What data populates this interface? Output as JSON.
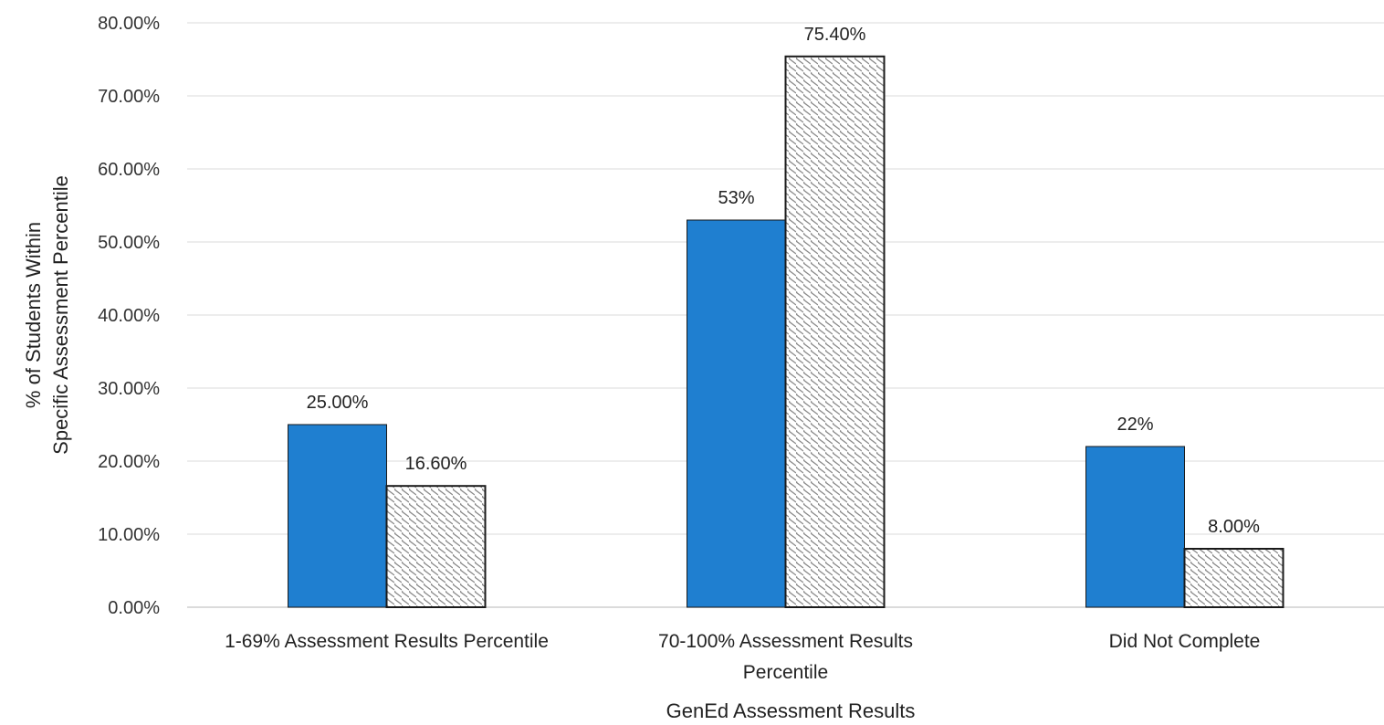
{
  "chart_data": {
    "type": "bar",
    "title": "",
    "xlabel": "GenEd Assessment Results",
    "ylabel_lines": [
      "% of Students Within",
      "Specific Assessment Percentile"
    ],
    "categories": [
      [
        "1-69% Assessment Results Percentile"
      ],
      [
        "70-100% Assessment Results",
        "Percentile"
      ],
      [
        "Did Not Complete"
      ]
    ],
    "ylim": [
      0,
      80
    ],
    "yticks": [
      0,
      10,
      20,
      30,
      40,
      50,
      60,
      70,
      80
    ],
    "ytick_labels": [
      "0.00%",
      "10.00%",
      "20.00%",
      "30.00%",
      "40.00%",
      "50.00%",
      "60.00%",
      "70.00%",
      "80.00%"
    ],
    "grid": true,
    "legend": "none",
    "series": [
      {
        "style": "solid",
        "color": "#1f7fd0",
        "values": [
          25,
          53,
          22
        ],
        "data_labels": [
          "25.00%",
          "53%",
          "22%"
        ]
      },
      {
        "style": "hatched",
        "color": "#7a7a7a",
        "values": [
          16.6,
          75.4,
          8
        ],
        "data_labels": [
          "16.60%",
          "75.40%",
          "8.00%"
        ]
      }
    ]
  }
}
